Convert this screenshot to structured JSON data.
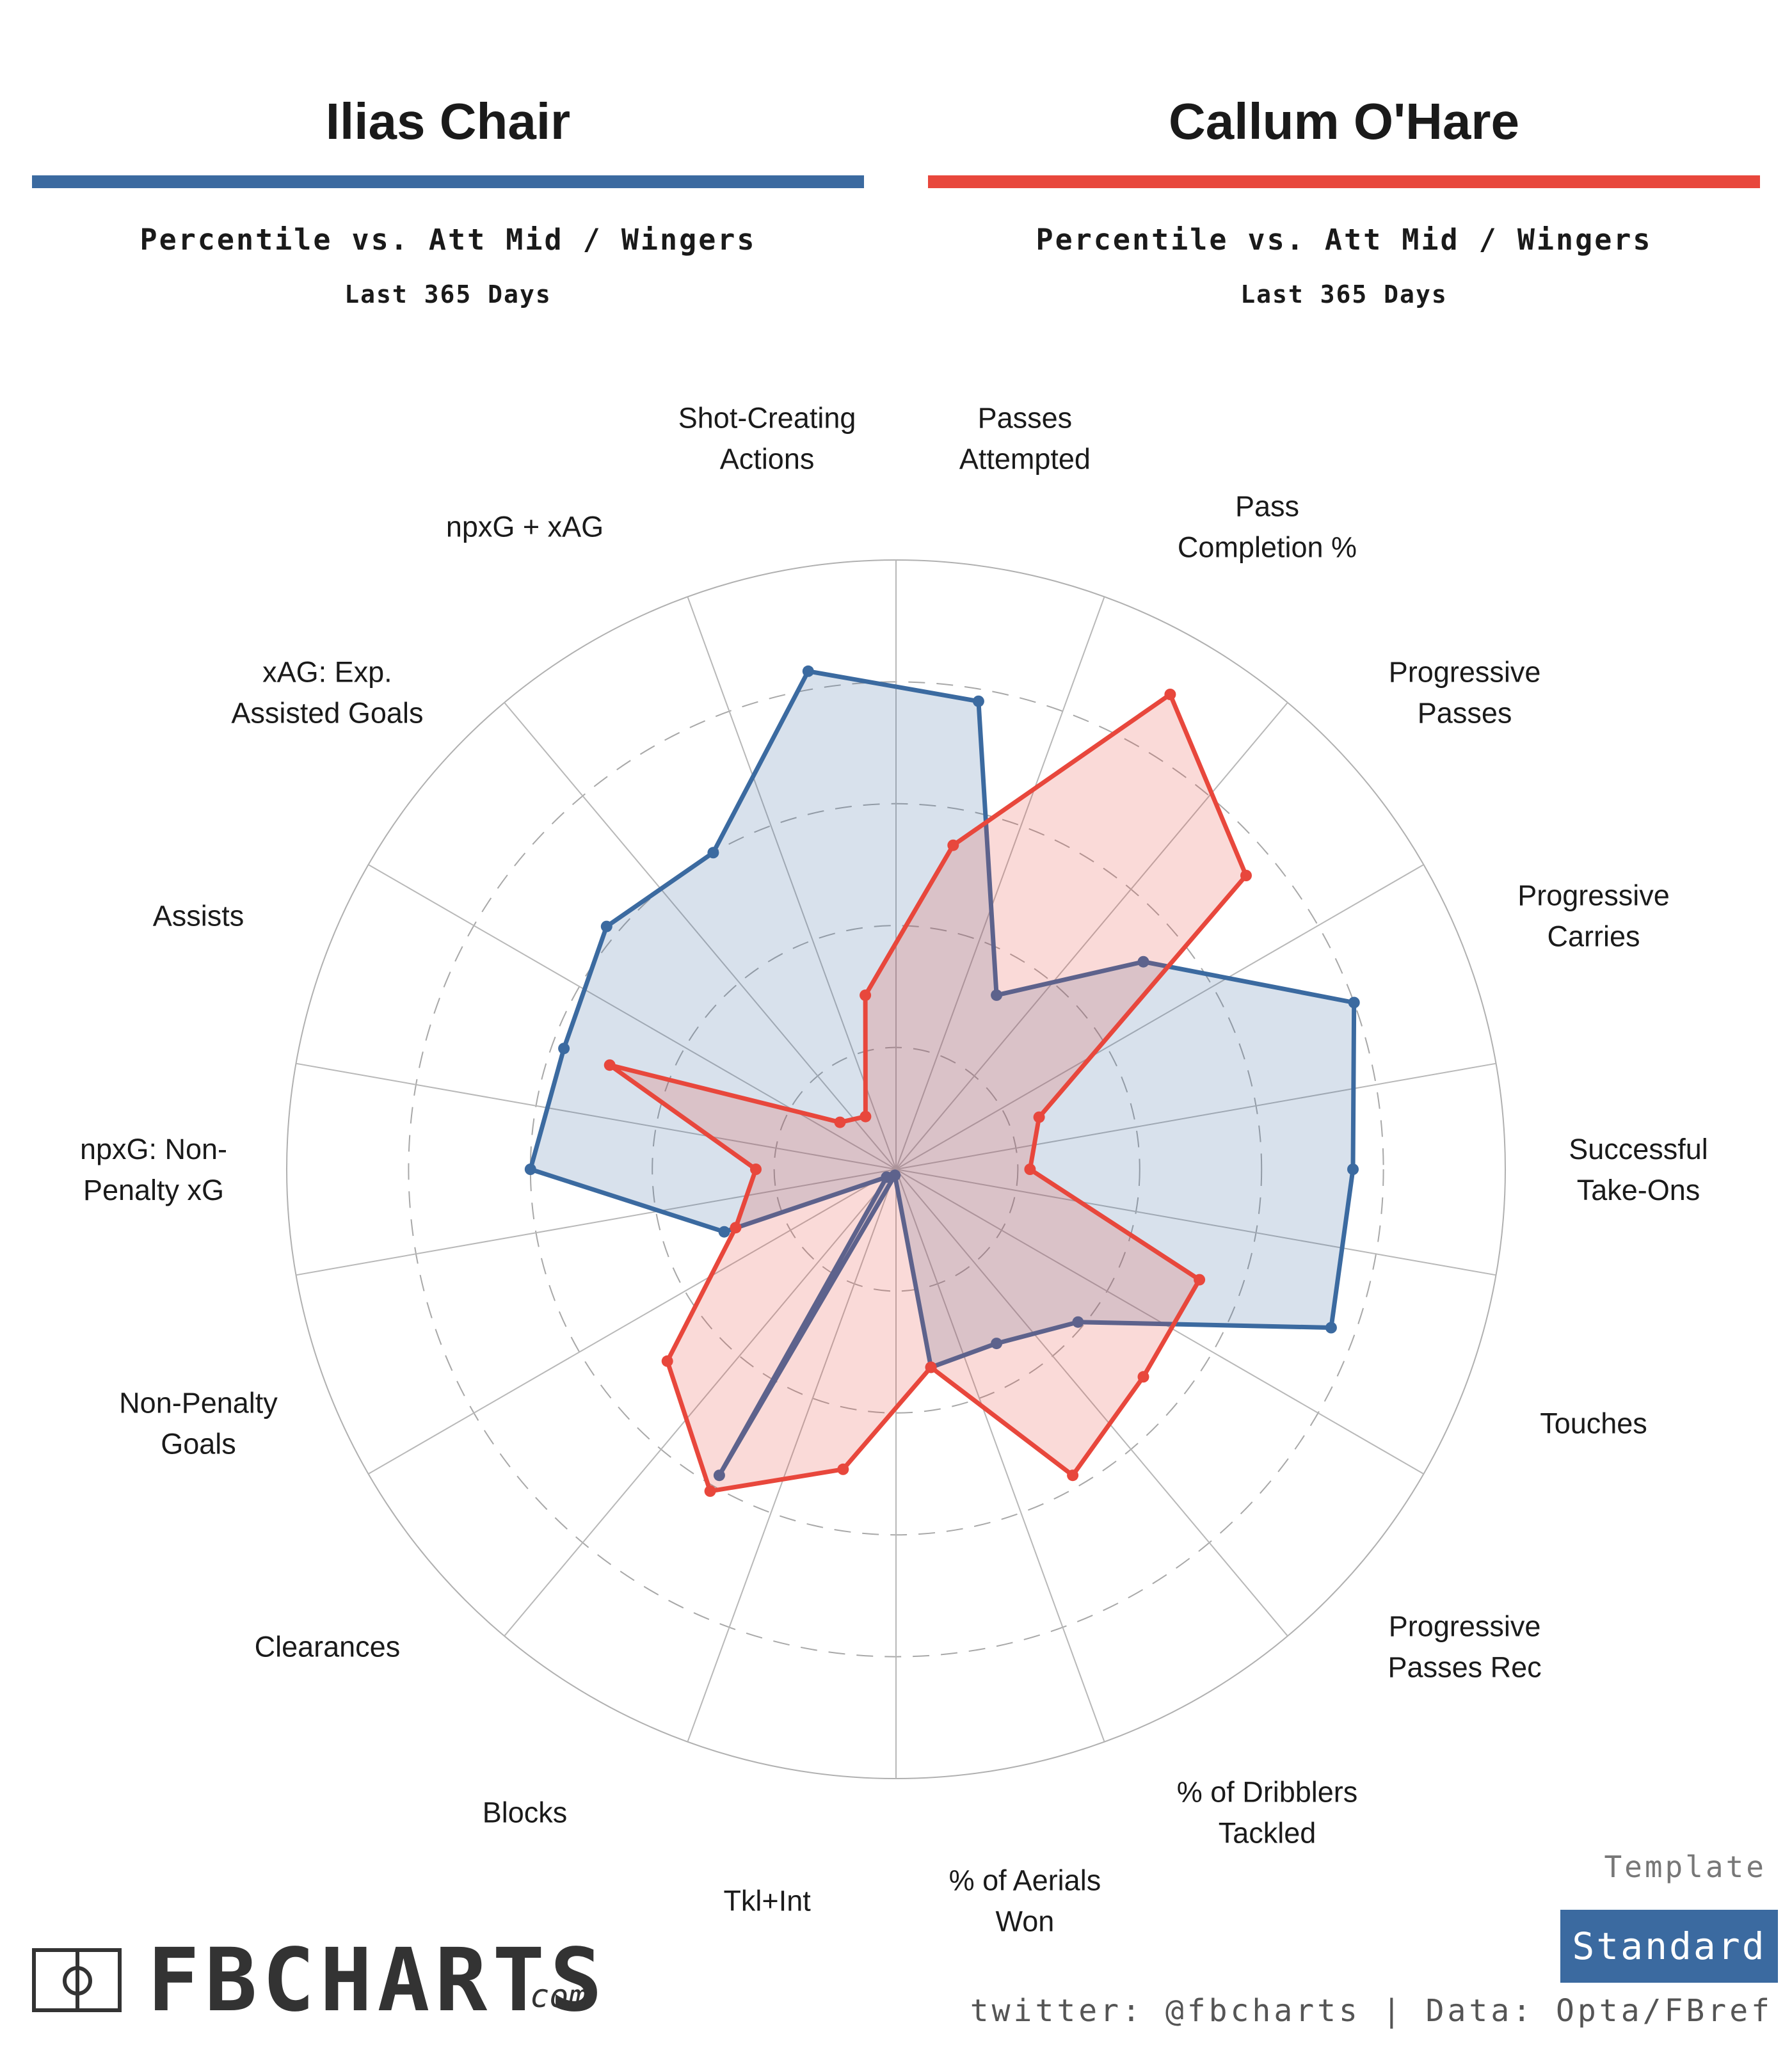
{
  "players": [
    {
      "name": "Ilias Chair",
      "subtitle": "Percentile vs. Att Mid / Wingers",
      "period": "Last 365 Days",
      "color": "#3b6aa0"
    },
    {
      "name": "Callum O'Hare",
      "subtitle": "Percentile vs. Att Mid / Wingers",
      "period": "Last 365 Days",
      "color": "#e8473c"
    }
  ],
  "chart_data": {
    "type": "radar",
    "range": [
      0,
      100
    ],
    "grid": true,
    "metrics": [
      [
        "Passes",
        "Attempted"
      ],
      [
        "Pass",
        "Completion %"
      ],
      [
        "Progressive",
        "Passes"
      ],
      [
        "Progressive",
        "Carries"
      ],
      [
        "Successful",
        "Take-Ons"
      ],
      [
        "Touches"
      ],
      [
        "Progressive",
        "Passes Rec"
      ],
      [
        "% of Dribblers",
        "Tackled"
      ],
      [
        "% of Aerials",
        "Won"
      ],
      [
        "Tkl+Int"
      ],
      [
        "Blocks"
      ],
      [
        "Clearances"
      ],
      [
        "Non-Penalty",
        "Goals"
      ],
      [
        "npxG: Non-",
        "Penalty xG"
      ],
      [
        "Assists"
      ],
      [
        "xAG: Exp.",
        "Assisted Goals"
      ],
      [
        "npxG + xAG"
      ],
      [
        "Shot-Creating",
        "Actions"
      ]
    ],
    "series": [
      {
        "name": "Ilias Chair",
        "color": "#3b6aa0",
        "values": [
          78,
          33,
          53,
          80,
          75,
          76,
          39,
          33,
          33,
          1,
          58,
          2,
          30,
          60,
          58,
          62,
          60,
          83
        ]
      },
      {
        "name": "Callum O'Hare",
        "color": "#e8473c",
        "values": [
          54,
          90,
          75,
          25,
          22,
          53,
          53,
          58,
          33,
          50,
          61,
          49,
          28,
          23,
          50,
          12,
          10,
          29
        ]
      }
    ]
  },
  "footer": {
    "template_label": "Template",
    "template_value": "Standard",
    "logo_text": "FBCHARTS",
    "logo_suffix": ".com",
    "credits": "twitter: @fbcharts | Data: Opta/FBref"
  }
}
